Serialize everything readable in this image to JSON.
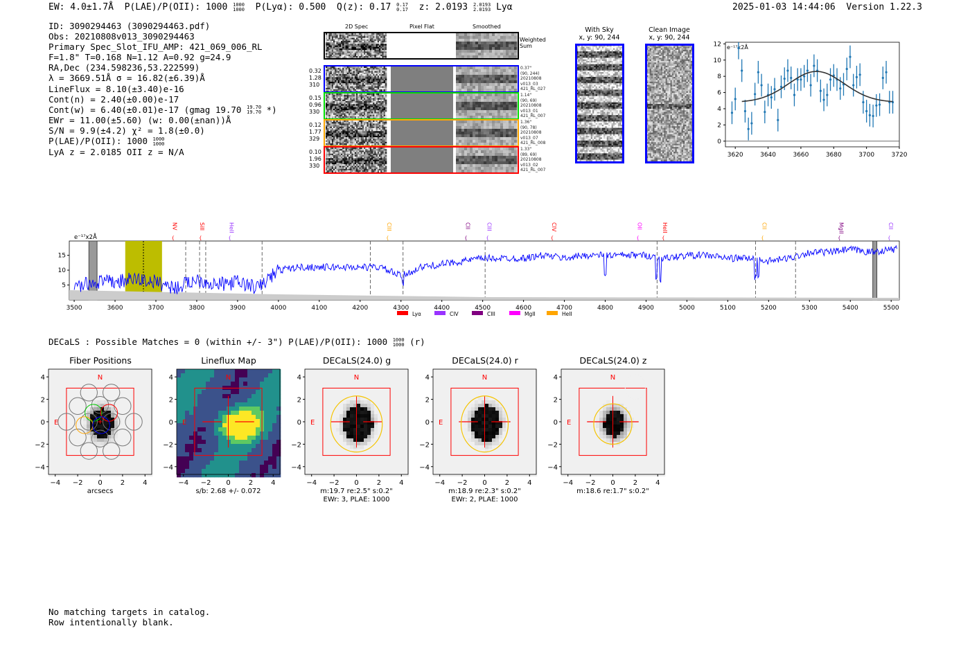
{
  "header": {
    "ew": "EW: 4.0±1.7Å",
    "plae_label": "P(LAE)/P(OII): 1000",
    "plae_hi": "1000",
    "plae_lo": "1000",
    "plya": "P(Lyα): 0.500",
    "qz": "Q(z): 0.17",
    "qz_hi": "0.17",
    "qz_lo": "0.17",
    "z": "z: 2.0193",
    "z_hi": "2.0193",
    "z_lo": "2.0193",
    "z_line": "Lyα",
    "datetime": "2025-01-03 14:44:06",
    "version": "Version 1.22.3"
  },
  "info": {
    "id": "ID: 3090294463 (3090294463.pdf)",
    "obs": "Obs: 20210808v013_3090294463",
    "primary": "Primary Spec_Slot_IFU_AMP: 421_069_006_RL",
    "params": "F=1.8\"  T=0.168  N=1.12  A=0.92  g=24.9",
    "radec": "RA,Dec (234.598236,53.222599)",
    "lambda": "λ = 3669.51Å   σ = 16.82(±6.39)Å",
    "lineflux": "LineFlux = 8.10(±3.40)e-16",
    "contn": "Cont(n) = 2.40(±0.00)e-17",
    "contw": "Cont(w) = 6.40(±0.01)e-17 (gmag 19.70",
    "contw_hi": "19.70",
    "contw_lo": "19.70",
    "contw_end": "*)",
    "ewr": "EWr = 11.00(±5.60) (w: 0.00(±nan))Å",
    "sn": "S/N = 9.9(±4.2)  χ² = 1.8(±0.0)",
    "plae": "P(LAE)/P(OII): 1000",
    "plae_hi": "1000",
    "plae_lo": "1000",
    "z": "LyA z = 2.0185   OII z = N/A"
  },
  "spec2d": {
    "col_labels": [
      "2D Spec",
      "Pixel Flat",
      "Smoothed"
    ],
    "weighted_label": "Weighted Sum",
    "rows": [
      {
        "color": "#0000ff",
        "left": [
          "0.32",
          "1.28",
          "310"
        ],
        "right": [
          "0.37\"",
          "(90, 244)",
          "20210808",
          "v013_03",
          "421_RL_027"
        ]
      },
      {
        "color": "#00dd00",
        "left": [
          "0.15",
          "0.96",
          "330"
        ],
        "right": [
          "1.14\"",
          "(90, 69)",
          "20210808",
          "v013_01",
          "421_RL_007"
        ]
      },
      {
        "color": "#ffa500",
        "left": [
          "0.12",
          "1.77",
          "329"
        ],
        "right": [
          "1.36\"",
          "(90, 78)",
          "20210808",
          "v013_07",
          "421_RL_008"
        ]
      },
      {
        "color": "#ff0000",
        "left": [
          "0.10",
          "1.96",
          "330"
        ],
        "right": [
          "1.33\"",
          "(89, 69)",
          "20210808",
          "v013_02",
          "421_RL_007"
        ]
      }
    ]
  },
  "cutouts": {
    "with_sky": {
      "title": "With Sky",
      "coords": "x, y: 90, 244"
    },
    "clean": {
      "title": "Clean Image",
      "coords": "x, y: 90, 244"
    }
  },
  "chart_data": [
    {
      "type": "scatter",
      "title": "",
      "unit_label": "e⁻¹⁷x2Å",
      "xlim": [
        3614,
        3720
      ],
      "ylim": [
        -0.7,
        12.2
      ],
      "xticks": [
        "3620",
        "3640",
        "3660",
        "3680",
        "3700",
        "3720"
      ],
      "yticks": [
        "0",
        "2",
        "4",
        "6",
        "8",
        "10",
        "12"
      ],
      "x": [
        3618,
        3620,
        3622,
        3624,
        3626,
        3628,
        3630,
        3632,
        3634,
        3636,
        3638,
        3640,
        3642,
        3644,
        3646,
        3648,
        3650,
        3652,
        3654,
        3656,
        3658,
        3660,
        3662,
        3664,
        3666,
        3668,
        3670,
        3672,
        3674,
        3676,
        3678,
        3680,
        3682,
        3684,
        3686,
        3688,
        3690,
        3692,
        3694,
        3696,
        3698,
        3700,
        3702,
        3704,
        3706,
        3708,
        3710,
        3712,
        3714,
        3716
      ],
      "y": [
        3.5,
        5.2,
        11.5,
        8.7,
        3.7,
        1.5,
        2.2,
        5.8,
        8.5,
        6.9,
        3.6,
        5.7,
        5.4,
        6.4,
        2.6,
        6.7,
        7.7,
        8.7,
        7.8,
        5.7,
        7.6,
        7.6,
        8.0,
        8.7,
        6.9,
        9.3,
        8.7,
        6.2,
        5.1,
        5.7,
        7.6,
        8.1,
        7.6,
        6.5,
        7.0,
        8.9,
        10.4,
        6.9,
        7.9,
        8.2,
        4.8,
        3.7,
        3.2,
        3.1,
        4.4,
        4.5,
        7.8,
        8.5,
        4.8,
        4.8
      ],
      "yerr": 1.4,
      "fit": {
        "center": 3669.51,
        "sigma": 16.82,
        "baseline": 4.8,
        "amplitude": 3.8,
        "range": [
          3624,
          3716
        ]
      }
    },
    {
      "type": "line",
      "unit_label": "e⁻¹⁷x2Å",
      "xlim": [
        3488,
        5520
      ],
      "ylim": [
        0,
        19.8
      ],
      "xticks": [
        "3500",
        "3600",
        "3700",
        "3800",
        "3900",
        "4000",
        "4100",
        "4200",
        "4300",
        "4400",
        "4500",
        "4600",
        "4700",
        "4800",
        "4900",
        "5000",
        "5100",
        "5200",
        "5300",
        "5400",
        "5500"
      ],
      "yticks": [
        "5",
        "10",
        "15"
      ],
      "x": [
        3500,
        3550,
        3600,
        3650,
        3700,
        3750,
        3800,
        3850,
        3900,
        3950,
        4000,
        4050,
        4100,
        4150,
        4200,
        4250,
        4300,
        4350,
        4400,
        4450,
        4500,
        4550,
        4600,
        4650,
        4700,
        4750,
        4800,
        4850,
        4900,
        4950,
        5000,
        5050,
        5100,
        5150,
        5200,
        5250,
        5300,
        5350,
        5400,
        5450,
        5500
      ],
      "y": [
        4,
        6,
        6,
        7,
        6,
        4,
        7,
        5,
        6,
        4,
        10,
        11,
        11,
        11,
        11,
        11,
        8,
        11,
        12,
        13,
        14,
        14,
        14,
        15,
        14,
        15,
        15,
        15,
        15,
        14,
        15,
        15,
        14,
        14,
        13,
        14,
        16,
        16,
        17,
        16,
        17
      ],
      "highlight": [
        3625,
        3715
      ],
      "fit_center": 3669.51,
      "dashed_lines": [
        3773,
        3807,
        3822,
        3960,
        4225,
        4305,
        4506,
        4927,
        5168,
        5266
      ],
      "masked": [
        [
          3536,
          3556
        ],
        [
          5455,
          5465
        ]
      ],
      "line_labels": [
        {
          "label": "NV",
          "wave": 3747,
          "color": "#ff0000"
        },
        {
          "label": "SiII",
          "wave": 3814,
          "color": "#ff0000"
        },
        {
          "label": "HeII",
          "wave": 3886,
          "color": "#9933ff"
        },
        {
          "label": "CIII",
          "wave": 4272,
          "color": "#ffa500"
        },
        {
          "label": "CII",
          "wave": 4464,
          "color": "#800080"
        },
        {
          "label": "CIII",
          "wave": 4517,
          "color": "#9933ff"
        },
        {
          "label": "CIV",
          "wave": 4675,
          "color": "#ff0000"
        },
        {
          "label": "OII",
          "wave": 4885,
          "color": "#ff00ff"
        },
        {
          "label": "HeII",
          "wave": 4947,
          "color": "#ff0000"
        },
        {
          "label": "CII",
          "wave": 5190,
          "color": "#ffa500"
        },
        {
          "label": "MgII",
          "wave": 5378,
          "color": "#800080"
        },
        {
          "label": "CII",
          "wave": 5500,
          "color": "#9933ff"
        }
      ],
      "legend": [
        {
          "label": "Lyα",
          "color": "#ff0000"
        },
        {
          "label": "CIV",
          "color": "#9933ff"
        },
        {
          "label": "CIII",
          "color": "#800080"
        },
        {
          "label": "MgII",
          "color": "#ff00ff"
        },
        {
          "label": "HeII",
          "color": "#ffa500"
        }
      ]
    }
  ],
  "decals": {
    "summary": "DECaLS : Possible Matches = 0 (within +/- 3\")  P(LAE)/P(OII): 1000",
    "plae_hi": "1000",
    "plae_lo": "1000",
    "band": "(r)",
    "ticks": [
      "4",
      "2",
      "0",
      "−2",
      "−4"
    ],
    "xticks": [
      "−4",
      "−2",
      "0",
      "2",
      "4"
    ],
    "north": "N",
    "east": "E",
    "panels": [
      {
        "title": "Fiber Positions",
        "caption": [
          "arcsecs"
        ]
      },
      {
        "title": "Lineflux Map",
        "caption": [
          "s/b: 2.68 +/- 0.072"
        ]
      },
      {
        "title": "DECaLS(24.0) g",
        "caption": [
          "m:19.7  re:2.5\"  s:0.2\"",
          "EWr: 3, PLAE: 1000"
        ]
      },
      {
        "title": "DECaLS(24.0) r",
        "caption": [
          "m:18.9  re:2.3\"  s:0.2\"",
          "EWr: 2, PLAE: 1000"
        ]
      },
      {
        "title": "DECaLS(24.0) z",
        "caption": [
          "m:18.6  re:1.7\"  s:0.2\""
        ]
      }
    ]
  },
  "footer": {
    "line1": "No matching targets in catalog.",
    "line2": "Row intentionally blank."
  }
}
